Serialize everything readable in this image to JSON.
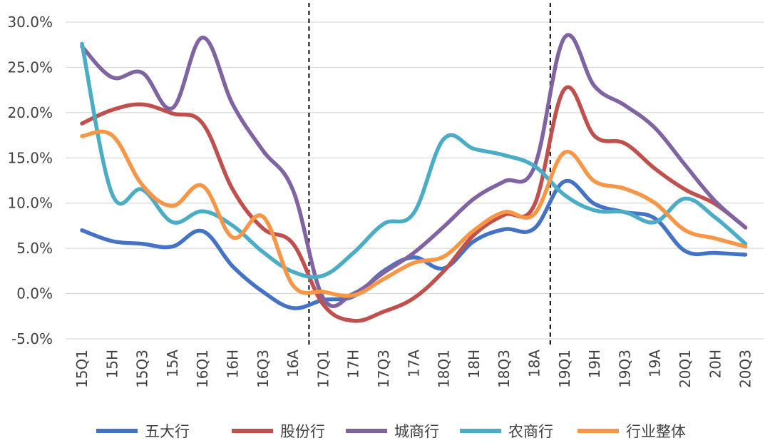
{
  "chart_data": {
    "type": "line",
    "title": "",
    "xlabel": "",
    "ylabel": "",
    "ylim": [
      -5,
      30
    ],
    "yticks": [
      -5,
      0,
      5,
      10,
      15,
      20,
      25,
      30
    ],
    "ytick_labels": [
      "-5.0%",
      "0.0%",
      "5.0%",
      "10.0%",
      "15.0%",
      "20.0%",
      "25.0%",
      "30.0%"
    ],
    "grid": "horizontal",
    "legend": "bottom",
    "categories": [
      "15Q1",
      "15H",
      "15Q3",
      "15A",
      "16Q1",
      "16H",
      "16Q3",
      "16A",
      "17Q1",
      "17H",
      "17Q3",
      "17A",
      "18Q1",
      "18H",
      "18Q3",
      "18A",
      "19Q1",
      "19H",
      "19Q3",
      "19A",
      "20Q1",
      "20H",
      "20Q3"
    ],
    "vlines_at": [
      "17Q1",
      "19Q1"
    ],
    "series": [
      {
        "name": "五大行",
        "color": "#4472C4",
        "values": [
          7.0,
          5.8,
          5.5,
          5.2,
          6.9,
          3.0,
          0.2,
          -1.6,
          -0.7,
          -0.3,
          2.5,
          4.0,
          2.8,
          5.8,
          7.1,
          7.2,
          12.4,
          9.9,
          9.0,
          8.3,
          4.7,
          4.5,
          4.3
        ]
      },
      {
        "name": "股份行",
        "color": "#C0504D",
        "values": [
          18.8,
          20.3,
          20.9,
          19.9,
          18.8,
          11.5,
          7.2,
          5.5,
          -1.2,
          -3.0,
          -2.0,
          -0.5,
          2.5,
          6.5,
          8.7,
          9.8,
          22.6,
          17.4,
          16.6,
          13.8,
          11.5,
          9.9,
          7.3
        ]
      },
      {
        "name": "城商行",
        "color": "#8064A2",
        "values": [
          27.3,
          23.9,
          24.4,
          20.5,
          28.3,
          20.9,
          15.8,
          11.4,
          -0.5,
          0.0,
          2.3,
          4.5,
          7.4,
          10.5,
          12.4,
          14.0,
          28.3,
          22.9,
          20.8,
          18.3,
          14.2,
          10.2,
          7.3
        ]
      },
      {
        "name": "农商行",
        "color": "#4BACC6",
        "values": [
          27.6,
          11.0,
          11.5,
          7.9,
          9.1,
          7.5,
          4.6,
          2.4,
          2.0,
          4.5,
          7.7,
          8.9,
          17.1,
          16.0,
          15.3,
          14.1,
          10.9,
          9.2,
          9.0,
          7.9,
          10.5,
          8.4,
          5.5
        ]
      },
      {
        "name": "行业整体",
        "color": "#F79646",
        "values": [
          17.4,
          17.5,
          12.0,
          9.7,
          11.9,
          6.2,
          8.5,
          0.9,
          0.2,
          -0.2,
          1.6,
          3.4,
          4.1,
          7.0,
          9.0,
          8.8,
          15.6,
          12.4,
          11.6,
          10.0,
          7.0,
          6.1,
          5.2
        ]
      }
    ]
  }
}
